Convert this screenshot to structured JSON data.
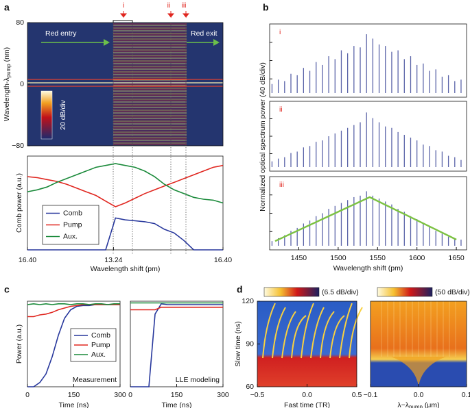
{
  "chart_data": [
    {
      "type": "heatmap",
      "panel": "a",
      "ylabel": "Wavelength-λ",
      "ylabel_sub": "pump",
      "ylabel_unit": " (nm)",
      "ylim": [
        -80,
        80
      ],
      "yticks": [
        80,
        0,
        {
          "value": -80,
          "label": "−80"
        }
      ],
      "annotations": [
        "Red entry",
        "Red exit"
      ],
      "markers": [
        "i",
        "ii",
        "iii"
      ],
      "colorbar_label": "20 dB/div"
    },
    {
      "type": "line",
      "ylabel": "Comb power (a.u.)",
      "xlabel": "Wavelength shift (pm)",
      "xticks": [
        {
          "value": 16.4,
          "label": "16.40"
        },
        {
          "value": 13.24,
          "label": "13.24"
        },
        {
          "value": 16.4,
          "label": "16.40"
        }
      ],
      "ylim": [
        0,
        1
      ],
      "legend": "lower left",
      "series": [
        {
          "name": "Comb",
          "color": "#27379c",
          "values": [
            0,
            0,
            0,
            0,
            0,
            0,
            0,
            0,
            0,
            0.34,
            0.32,
            0.31,
            0.3,
            0.28,
            0.22,
            0.18,
            0.1,
            0,
            0,
            0,
            0
          ]
        },
        {
          "name": "Pump",
          "color": "#e0261f",
          "values": [
            0.78,
            0.77,
            0.75,
            0.73,
            0.7,
            0.66,
            0.62,
            0.58,
            0.52,
            0.46,
            0.5,
            0.55,
            0.6,
            0.64,
            0.68,
            0.72,
            0.76,
            0.8,
            0.84,
            0.88,
            0.9
          ]
        },
        {
          "name": "Aux.",
          "color": "#1a8a3a",
          "values": [
            0.62,
            0.64,
            0.67,
            0.72,
            0.76,
            0.8,
            0.84,
            0.88,
            0.9,
            0.92,
            0.9,
            0.88,
            0.84,
            0.78,
            0.7,
            0.64,
            0.6,
            0.56,
            0.54,
            0.53,
            0.5
          ]
        }
      ]
    },
    {
      "type": "spectrum",
      "panel": "b",
      "ylabel": "Normalized optical spectrum power (40 dB/div)",
      "xlabel": "Wavelength shift (pm)",
      "xlim": [
        1413,
        1663
      ],
      "xticks": [
        1450,
        1500,
        1550,
        1600,
        1650
      ],
      "ylim": [
        0,
        100
      ],
      "x": [
        1416,
        1424,
        1432,
        1440,
        1448,
        1456,
        1464,
        1472,
        1480,
        1488,
        1496,
        1504,
        1512,
        1520,
        1528,
        1536,
        1544,
        1552,
        1560,
        1568,
        1576,
        1584,
        1592,
        1600,
        1608,
        1616,
        1624,
        1632,
        1640,
        1648,
        1656
      ],
      "series": [
        {
          "name": "i",
          "color": "#5a63a8",
          "values": [
            18,
            24,
            22,
            32,
            30,
            40,
            36,
            48,
            44,
            56,
            52,
            64,
            60,
            70,
            68,
            86,
            80,
            72,
            70,
            62,
            64,
            52,
            56,
            44,
            46,
            36,
            38,
            28,
            30,
            22,
            24
          ]
        },
        {
          "name": "ii",
          "color": "#5a63a8",
          "values": [
            14,
            18,
            20,
            26,
            28,
            34,
            36,
            42,
            44,
            50,
            54,
            58,
            62,
            66,
            70,
            84,
            76,
            70,
            64,
            62,
            56,
            52,
            48,
            44,
            38,
            36,
            30,
            28,
            22,
            20,
            16
          ]
        },
        {
          "name": "iii",
          "color": "#5a63a8",
          "values": [
            12,
            16,
            20,
            26,
            30,
            36,
            40,
            46,
            50,
            56,
            60,
            64,
            68,
            72,
            74,
            80,
            74,
            70,
            66,
            62,
            56,
            52,
            46,
            42,
            36,
            32,
            26,
            22,
            18,
            16,
            14
          ]
        }
      ],
      "fit": {
        "color": "#7cc242",
        "x": [
          1420,
          1540,
          1650
        ],
        "values": [
          12,
          72,
          14
        ]
      }
    },
    {
      "type": "line",
      "panel": "c",
      "ylabel": "Power (a.u.)",
      "xlabel": "Time (ns)",
      "annotation": "Measurement",
      "x": [
        0,
        20,
        40,
        60,
        80,
        100,
        120,
        140,
        160,
        180,
        200,
        220,
        240,
        260,
        280,
        300
      ],
      "xlim": [
        0,
        300
      ],
      "xticks": [
        0,
        150,
        300
      ],
      "ylim": [
        0,
        1
      ],
      "legend": "center right",
      "series": [
        {
          "name": "Comb",
          "color": "#27379c",
          "values": [
            0,
            0,
            0.05,
            0.15,
            0.35,
            0.6,
            0.8,
            0.9,
            0.94,
            0.95,
            0.95,
            0.96,
            0.96,
            0.96,
            0.96,
            0.96
          ]
        },
        {
          "name": "Pump",
          "color": "#e0261f",
          "values": [
            0.82,
            0.82,
            0.84,
            0.85,
            0.87,
            0.9,
            0.92,
            0.94,
            0.95,
            0.96,
            0.96,
            0.96,
            0.96,
            0.96,
            0.96,
            0.96
          ]
        },
        {
          "name": "Aux.",
          "color": "#1a8a3a",
          "values": [
            0.96,
            0.97,
            0.96,
            0.97,
            0.96,
            0.97,
            0.97,
            0.96,
            0.97,
            0.97,
            0.96,
            0.97,
            0.97,
            0.96,
            0.97,
            0.97
          ]
        }
      ]
    },
    {
      "type": "line",
      "xlabel": "Time (ns)",
      "annotation": "LLE modeling",
      "x": [
        0,
        20,
        40,
        60,
        80,
        100,
        120,
        140,
        160,
        180,
        200,
        220,
        240,
        260,
        280,
        300
      ],
      "xlim": [
        0,
        300
      ],
      "xticks": [
        0,
        150,
        300
      ],
      "ylim": [
        0,
        1
      ],
      "series": [
        {
          "color": "#27379c",
          "values": [
            0,
            0,
            0,
            0,
            0.85,
            0.97,
            0.96,
            0.96,
            0.96,
            0.96,
            0.96,
            0.96,
            0.96,
            0.96,
            0.96,
            0.96
          ]
        },
        {
          "color": "#e0261f",
          "values": [
            0.9,
            0.9,
            0.9,
            0.9,
            0.9,
            0.93,
            0.93,
            0.93,
            0.93,
            0.93,
            0.93,
            0.93,
            0.93,
            0.93,
            0.93,
            0.93
          ]
        },
        {
          "color": "#1a8a3a",
          "values": [
            0.98,
            0.98,
            0.98,
            0.98,
            0.98,
            0.98,
            0.98,
            0.98,
            0.98,
            0.98,
            0.98,
            0.98,
            0.98,
            0.98,
            0.98,
            0.98
          ]
        }
      ]
    },
    {
      "type": "heatmap",
      "panel": "d",
      "ylabel": "Slow time (ns)",
      "xlabel": "Fast time (TR)",
      "ylim": [
        60,
        120
      ],
      "yticks": [
        60,
        90,
        120
      ],
      "xlim": [
        -0.5,
        0.5
      ],
      "xticks": [
        {
          "value": -0.5,
          "label": "−0.5"
        },
        {
          "value": 0,
          "label": "0.0"
        },
        {
          "value": 0.5,
          "label": "0.5"
        }
      ],
      "colorbar_label": "(6.5 dB/div)"
    },
    {
      "type": "heatmap",
      "xlabel": "λ−λ",
      "xlabel_sub": "pump",
      "xlabel_unit": " (μm)",
      "ylim": [
        60,
        120
      ],
      "xlim": [
        -0.1,
        0.1
      ],
      "xticks": [
        {
          "value": -0.1,
          "label": "−0.1"
        },
        {
          "value": 0,
          "label": "0.0"
        },
        {
          "value": 0.1,
          "label": "0.1"
        }
      ],
      "colorbar_label": "(50 dB/div)"
    }
  ]
}
